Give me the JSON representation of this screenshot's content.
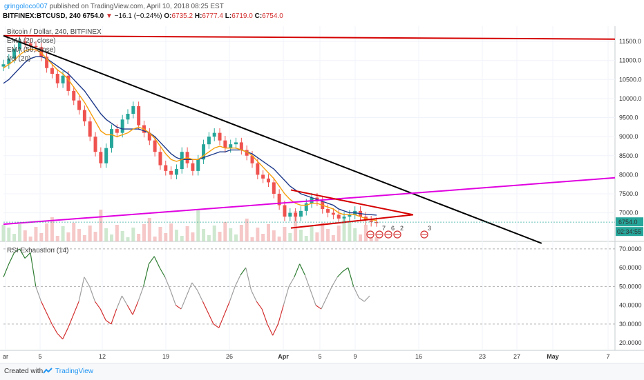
{
  "header": {
    "user": "gringoloco007",
    "published": "published on TradingView.com, April 10, 2018 08:25 EST",
    "symbol": "BITFINEX:BTCUSD, 240",
    "last": "6754.0",
    "change": "−16.1 (−0.24%)",
    "o_label": "O:",
    "o_value": "6735.2",
    "h_label": "H:",
    "h_value": "6777.4",
    "l_label": "L:",
    "l_value": "6719.0",
    "c_label": "C:",
    "c_value": "6754.0"
  },
  "legend": {
    "title": "Bitcoin / Dollar, 240, BITFINEX",
    "ema20": "EMA (20, close)",
    "ema50": "EMA (50, close)",
    "vol": "Vol (20)",
    "rsi": "RSI Exhaustion (14)"
  },
  "price_badge": "6754.0",
  "time_badge": "02:34:55",
  "events": [
    "7",
    "6",
    "2",
    "3"
  ],
  "footer": {
    "created": "Created with",
    "brand": "TradingView"
  },
  "colors": {
    "up": "#26a69a",
    "down": "#ef5350",
    "ema20": "#f59e0b",
    "ema50": "#1e3a8a",
    "trend_red": "#d50000",
    "trend_black": "#000000",
    "trend_magenta": "#e000e0",
    "rsi_up": "#2e7d32",
    "rsi_down": "#d32f2f",
    "rsi_mid": "#9e9e9e"
  },
  "chart_data": [
    {
      "type": "line",
      "name": "BTCUSD 4h price",
      "x_ticks": [
        "ar",
        "5",
        "12",
        "19",
        "26",
        "Apr",
        "5",
        "9",
        "16",
        "23",
        "27",
        "May",
        "7"
      ],
      "y_ticks": [
        7000,
        7500,
        8000,
        8500,
        9000,
        9500,
        10000,
        10500,
        11000,
        11500
      ],
      "ylim": [
        6250,
        11900
      ],
      "price": [
        10900,
        11050,
        11300,
        11500,
        11450,
        11380,
        11350,
        11100,
        10800,
        10650,
        10400,
        10600,
        10200,
        9950,
        9700,
        9400,
        9000,
        8600,
        8300,
        8700,
        9200,
        9100,
        9450,
        9600,
        9800,
        9300,
        9100,
        8900,
        8600,
        8250,
        8100,
        8000,
        8150,
        8600,
        8300,
        8100,
        8400,
        8800,
        9000,
        9100,
        8900,
        8700,
        8800,
        8850,
        8650,
        8500,
        8300,
        8000,
        7900,
        7800,
        7500,
        7200,
        6900,
        7000,
        6900,
        7050,
        7250,
        7400,
        7300,
        7100,
        7000,
        6950,
        6850,
        6900,
        6950,
        7050,
        6900,
        6800,
        6760,
        6754
      ],
      "ema20": [
        10800,
        10900,
        11000,
        11150,
        11250,
        11300,
        11280,
        11200,
        11050,
        10900,
        10750,
        10650,
        10500,
        10300,
        10100,
        9900,
        9650,
        9400,
        9150,
        9050,
        9050,
        9000,
        9050,
        9100,
        9200,
        9250,
        9200,
        9100,
        8950,
        8750,
        8550,
        8400,
        8350,
        8400,
        8450,
        8400,
        8400,
        8500,
        8600,
        8700,
        8750,
        8700,
        8700,
        8700,
        8650,
        8600,
        8500,
        8350,
        8200,
        8050,
        7900,
        7700,
        7500,
        7350,
        7250,
        7200,
        7200,
        7250,
        7250,
        7200,
        7150,
        7100,
        7000,
        6950,
        6950,
        6950,
        6900,
        6850,
        6820,
        6800
      ],
      "ema50": [
        10400,
        10500,
        10650,
        10800,
        10950,
        11050,
        11100,
        11100,
        11050,
        10950,
        10850,
        10750,
        10650,
        10500,
        10350,
        10200,
        10000,
        9800,
        9600,
        9450,
        9350,
        9250,
        9200,
        9200,
        9200,
        9200,
        9150,
        9100,
        9000,
        8850,
        8700,
        8550,
        8450,
        8400,
        8400,
        8400,
        8400,
        8450,
        8500,
        8550,
        8600,
        8600,
        8650,
        8650,
        8650,
        8600,
        8550,
        8450,
        8350,
        8250,
        8150,
        8000,
        7850,
        7700,
        7600,
        7500,
        7450,
        7400,
        7350,
        7300,
        7250,
        7200,
        7100,
        7050,
        7000,
        7000,
        6980,
        6960,
        6950,
        6940
      ],
      "trendlines": [
        {
          "name": "resistance red",
          "from": [
            0,
            11650
          ],
          "to": [
            1,
            11560
          ]
        },
        {
          "name": "descending black",
          "from": [
            0,
            11650
          ],
          "to": [
            0.88,
            6200
          ]
        },
        {
          "name": "ascending magenta",
          "from": [
            0,
            6700
          ],
          "to": [
            1,
            7920
          ]
        },
        {
          "name": "triangle top",
          "from": [
            0.47,
            7600
          ],
          "to": [
            0.67,
            6950
          ]
        },
        {
          "name": "triangle bottom",
          "from": [
            0.47,
            6600
          ],
          "to": [
            0.67,
            6950
          ]
        }
      ],
      "last_price": 6754.0
    },
    {
      "type": "line",
      "name": "RSI Exhaustion (14)",
      "y_ticks": [
        20,
        30,
        40,
        50,
        60,
        70
      ],
      "ylim": [
        16,
        74
      ],
      "values": [
        55,
        62,
        68,
        70,
        65,
        68,
        50,
        42,
        36,
        30,
        25,
        22,
        28,
        35,
        42,
        55,
        50,
        42,
        38,
        32,
        30,
        38,
        45,
        40,
        35,
        42,
        50,
        62,
        66,
        60,
        55,
        48,
        40,
        38,
        45,
        52,
        48,
        42,
        36,
        30,
        28,
        35,
        42,
        50,
        56,
        60,
        48,
        42,
        38,
        30,
        24,
        30,
        40,
        50,
        55,
        62,
        56,
        48,
        40,
        38,
        44,
        50,
        55,
        58,
        60,
        50,
        44,
        42,
        45
      ]
    }
  ]
}
